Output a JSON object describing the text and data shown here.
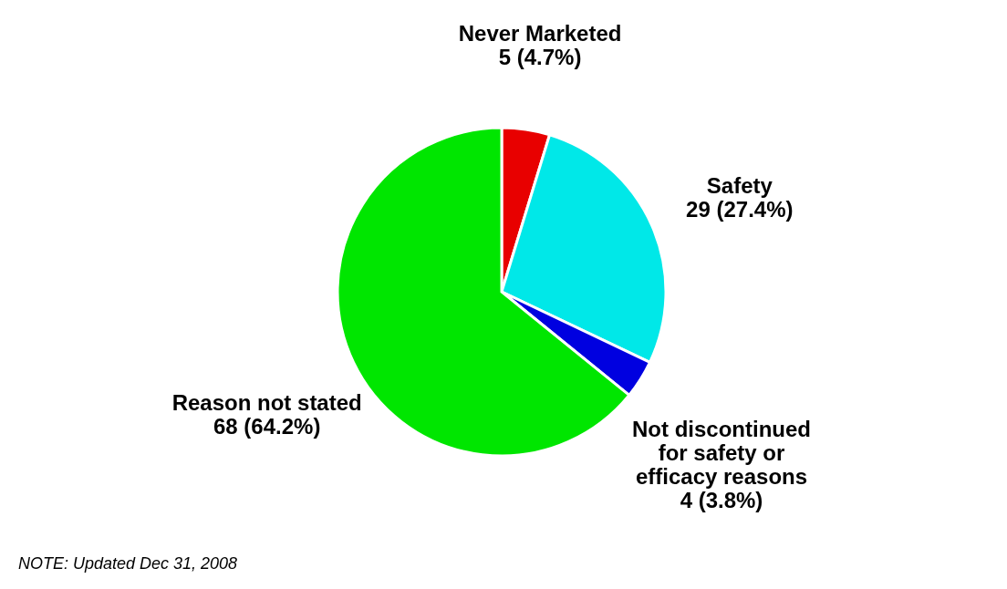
{
  "chart_data": {
    "type": "pie",
    "categories": [
      "Never Marketed",
      "Safety",
      "Not discontinued for safety or efficacy reasons",
      "Reason not stated"
    ],
    "values": [
      5,
      29,
      4,
      68
    ],
    "colors": [
      "#e80000",
      "#00e8e8",
      "#0000e0",
      "#00e600"
    ],
    "value_labels": [
      "5 (4.7%)",
      "29 (27.4%)",
      "4 (3.8%)",
      "68 (64.2%)"
    ],
    "annotations": [
      "NOTE: Updated Dec 31, 2008"
    ],
    "legend": false
  }
}
